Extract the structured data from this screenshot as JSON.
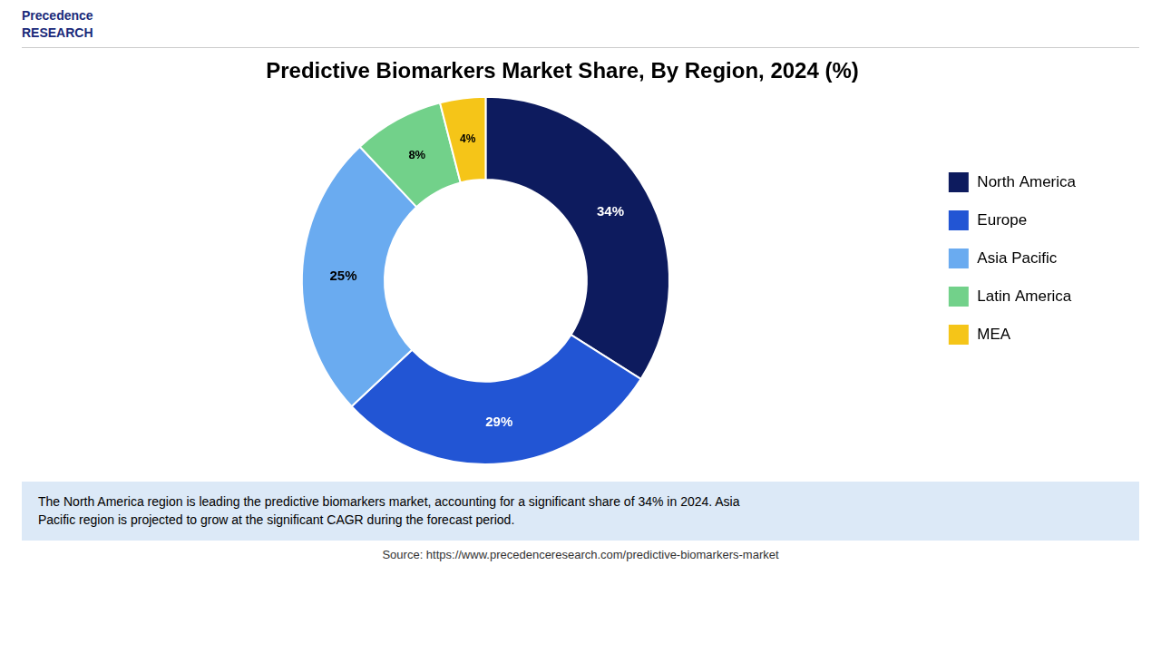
{
  "chart_data": {
    "type": "doughnut",
    "title": "Predictive Biomarkers Market Share, By Region, 2024 (%)",
    "categories": [
      "North America",
      "Europe",
      "Asia Pacific",
      "Latin America",
      "MEA"
    ],
    "values": [
      34,
      29,
      25,
      8,
      4
    ],
    "value_labels": [
      "34%",
      "29%",
      "25%",
      "8%",
      "4%"
    ],
    "colors": [
      "#0d1b5e",
      "#2255d4",
      "#6aabf0",
      "#72d18a",
      "#f5c518"
    ],
    "data_labels": true,
    "legend": "right",
    "annotations": [
      "Precedence\nRESEARCH",
      "The North America region is leading the predictive biomarkers market, accounting for a significant share of 34% in 2024. Asia\nPacific region is projected to grow at the significant CAGR during the forecast period.",
      "Source: https://www.precedenceresearch.com/predictive-biomarkers-market"
    ]
  }
}
